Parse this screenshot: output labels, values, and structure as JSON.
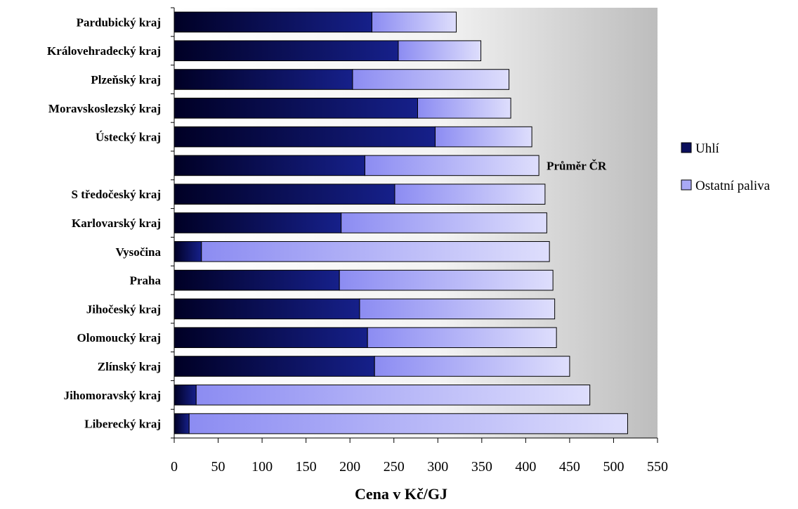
{
  "chart_data": {
    "type": "bar",
    "orientation": "horizontal",
    "stacked": true,
    "categories": [
      "Pardubický kraj",
      "Královehradecký kraj",
      "Plzeňský kraj",
      "Moravskoslezský kraj",
      "Ústecký kraj",
      "",
      "S tředočeský kraj",
      "Karlovarský kraj",
      "Vysočina",
      "Praha",
      "Jihočeský kraj",
      "Olomoucký kraj",
      "Zlínský kraj",
      "Jihomoravský kraj",
      "Liberecký kraj"
    ],
    "series": [
      {
        "name": "Uhlí",
        "color": "#0b0f5c",
        "values": [
          225,
          255,
          203,
          277,
          297,
          217,
          251,
          190,
          31,
          188,
          211,
          220,
          228,
          25,
          17
        ]
      },
      {
        "name": "Ostatní paliva",
        "color": "#a9a9f5",
        "values": [
          96,
          94,
          178,
          106,
          110,
          198,
          171,
          234,
          396,
          243,
          222,
          215,
          222,
          448,
          499
        ]
      }
    ],
    "annotations": [
      {
        "category_index": 5,
        "text": "Průměr ČR"
      }
    ],
    "xlabel": "Cena v Kč/GJ",
    "ylabel": "",
    "title": "",
    "xlim": [
      0,
      550
    ],
    "xticks": [
      0,
      50,
      100,
      150,
      200,
      250,
      300,
      350,
      400,
      450,
      500,
      550
    ],
    "grid": false,
    "legend": "right"
  }
}
